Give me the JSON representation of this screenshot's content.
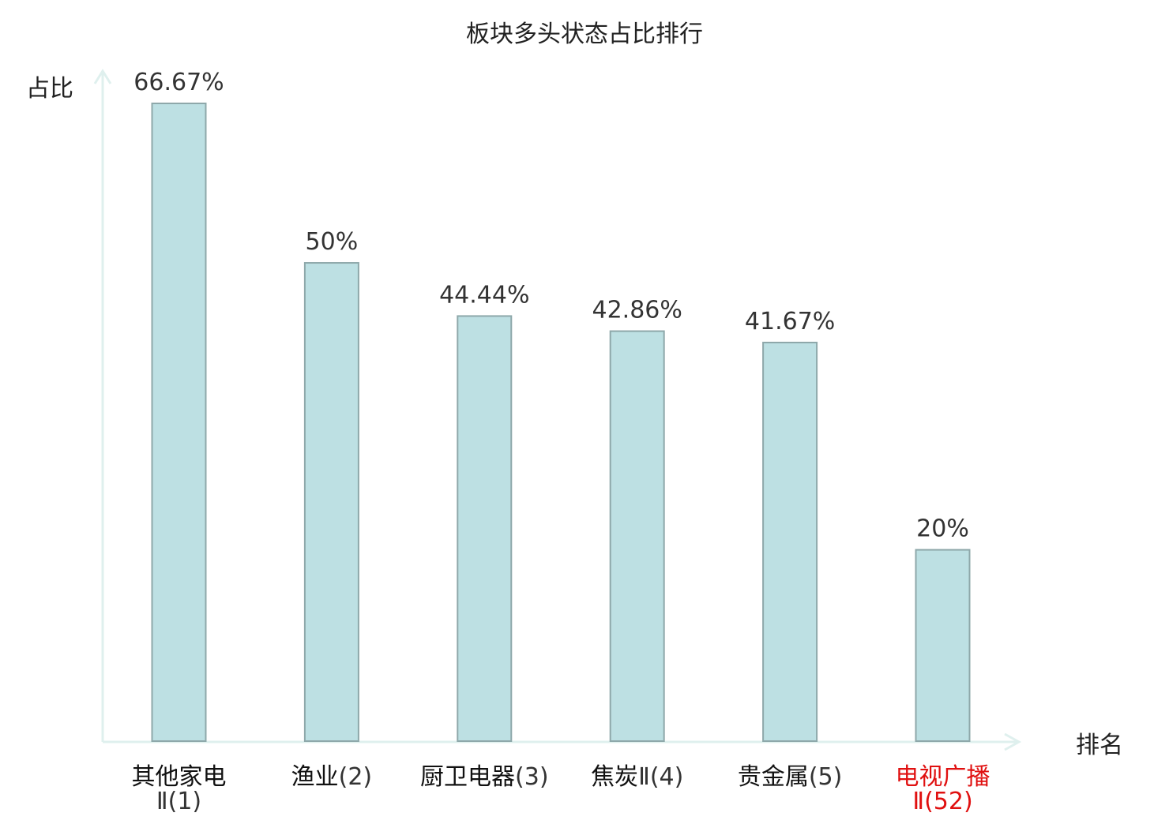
{
  "chart_data": {
    "type": "bar",
    "title": "板块多头状态占比排行",
    "ylabel": "占比",
    "xlabel": "排名",
    "categories": [
      {
        "name": "其他家电",
        "rank_text": "Ⅱ(1)",
        "highlight": false
      },
      {
        "name": "渔业",
        "rank_text": "(2)",
        "highlight": false
      },
      {
        "name": "厨卫电器",
        "rank_text": "(3)",
        "highlight": false
      },
      {
        "name": "焦炭",
        "rank_text": "Ⅱ(4)",
        "highlight": false
      },
      {
        "name": "贵金属",
        "rank_text": "(5)",
        "highlight": false
      },
      {
        "name": "电视广播",
        "rank_text": "Ⅱ(52)",
        "highlight": true
      }
    ],
    "values": [
      66.67,
      50,
      44.44,
      42.86,
      41.67,
      20
    ],
    "value_labels": [
      "66.67%",
      "50%",
      "44.44%",
      "42.86%",
      "41.67%",
      "20%"
    ],
    "ylim": [
      0,
      66.67
    ],
    "grid": false,
    "colors": {
      "bar_fill": "#bde0e3",
      "bar_stroke": "#8ea8aa",
      "axis": "#dff0ee",
      "text": "#333333",
      "title": "#222222",
      "highlight": "#e01010"
    }
  }
}
